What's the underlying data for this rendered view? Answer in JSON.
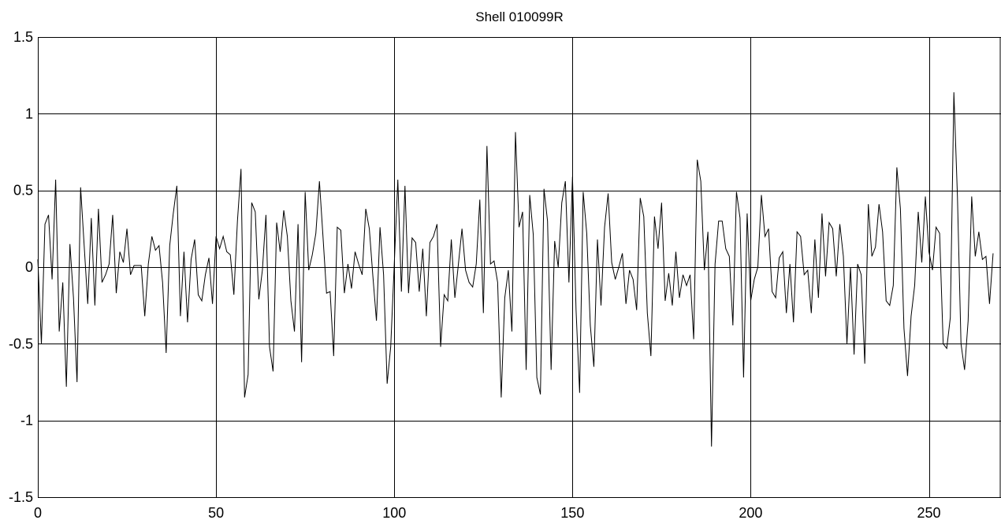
{
  "chart_data": {
    "type": "line",
    "title": "Shell 010099R",
    "xlabel": "",
    "ylabel": "",
    "xlim": [
      0,
      270
    ],
    "ylim": [
      -1.5,
      1.5
    ],
    "grid": true,
    "x_ticks": [
      0,
      50,
      100,
      150,
      200,
      250
    ],
    "x_tick_labels": [
      "0",
      "50",
      "100",
      "150",
      "200",
      "250"
    ],
    "y_ticks": [
      -1.5,
      -1,
      -0.5,
      0,
      0.5,
      1,
      1.5
    ],
    "y_tick_labels": [
      "-1.5",
      "-1",
      "-0.5",
      "0",
      "0.5",
      "1",
      "1.5"
    ],
    "series": [
      {
        "x_start": 0,
        "x_step": 1,
        "values": [
          0.05,
          -0.5,
          0.28,
          0.34,
          -0.08,
          0.57,
          -0.42,
          -0.1,
          -0.78,
          0.15,
          -0.2,
          -0.75,
          0.52,
          0.14,
          -0.24,
          0.32,
          -0.25,
          0.38,
          -0.1,
          -0.05,
          0.02,
          0.34,
          -0.17,
          0.1,
          0.03,
          0.25,
          -0.05,
          0.01,
          0.01,
          0.01,
          -0.32,
          0.02,
          0.2,
          0.11,
          0.14,
          -0.1,
          -0.56,
          0.14,
          0.35,
          0.53,
          -0.32,
          0.1,
          -0.36,
          0.05,
          0.18,
          -0.18,
          -0.22,
          -0.05,
          0.06,
          -0.24,
          0.2,
          0.12,
          0.2,
          0.1,
          0.08,
          -0.18,
          0.3,
          0.64,
          -0.85,
          -0.7,
          0.42,
          0.36,
          -0.21,
          -0.02,
          0.34,
          -0.52,
          -0.68,
          0.29,
          0.1,
          0.37,
          0.2,
          -0.22,
          -0.42,
          0.28,
          -0.62,
          0.49,
          -0.02,
          0.08,
          0.22,
          0.56,
          0.2,
          -0.17,
          -0.16,
          -0.58,
          0.26,
          0.24,
          -0.17,
          0.02,
          -0.14,
          0.1,
          0.02,
          -0.05,
          0.38,
          0.25,
          -0.06,
          -0.35,
          0.26,
          -0.05,
          -0.76,
          -0.52,
          0.02,
          0.57,
          -0.16,
          0.53,
          -0.17,
          0.19,
          0.16,
          -0.16,
          0.12,
          -0.32,
          0.16,
          0.2,
          0.28,
          -0.52,
          -0.18,
          -0.22,
          0.18,
          -0.2,
          0.02,
          0.25,
          -0.02,
          -0.1,
          -0.13,
          0.02,
          0.44,
          -0.3,
          0.79,
          0.02,
          0.04,
          -0.1,
          -0.85,
          -0.2,
          -0.02,
          -0.42,
          0.88,
          0.26,
          0.36,
          -0.67,
          0.47,
          0.21,
          -0.72,
          -0.83,
          0.51,
          0.3,
          -0.67,
          0.17,
          0.0,
          0.42,
          0.56,
          -0.1,
          0.59,
          -0.28,
          -0.82,
          0.49,
          0.22,
          -0.38,
          -0.65,
          0.18,
          -0.25,
          0.26,
          0.48,
          0.03,
          -0.08,
          0.0,
          0.09,
          -0.24,
          -0.02,
          -0.08,
          -0.28,
          0.45,
          0.33,
          -0.3,
          -0.58,
          0.33,
          0.12,
          0.42,
          -0.22,
          -0.04,
          -0.25,
          0.1,
          -0.2,
          -0.05,
          -0.12,
          -0.05,
          -0.47,
          0.7,
          0.56,
          -0.02,
          0.23,
          -1.17,
          0.02,
          0.3,
          0.3,
          0.12,
          0.07,
          -0.38,
          0.49,
          0.32,
          -0.72,
          0.35,
          -0.22,
          -0.08,
          0.0,
          0.47,
          0.2,
          0.25,
          -0.16,
          -0.2,
          0.06,
          0.1,
          -0.3,
          0.02,
          -0.36,
          0.23,
          0.2,
          -0.05,
          -0.02,
          -0.3,
          0.18,
          -0.2,
          0.35,
          -0.06,
          0.29,
          0.25,
          -0.06,
          0.28,
          0.07,
          -0.5,
          0.0,
          -0.57,
          0.02,
          -0.05,
          -0.63,
          0.41,
          0.07,
          0.13,
          0.41,
          0.23,
          -0.22,
          -0.25,
          -0.12,
          0.65,
          0.38,
          -0.4,
          -0.71,
          -0.32,
          -0.12,
          0.36,
          0.03,
          0.46,
          0.1,
          -0.02,
          0.26,
          0.22,
          -0.5,
          -0.53,
          -0.33,
          1.14,
          0.46,
          -0.5,
          -0.67,
          -0.35,
          0.46,
          0.07,
          0.23,
          0.05,
          0.07,
          -0.24,
          0.09
        ]
      }
    ]
  }
}
